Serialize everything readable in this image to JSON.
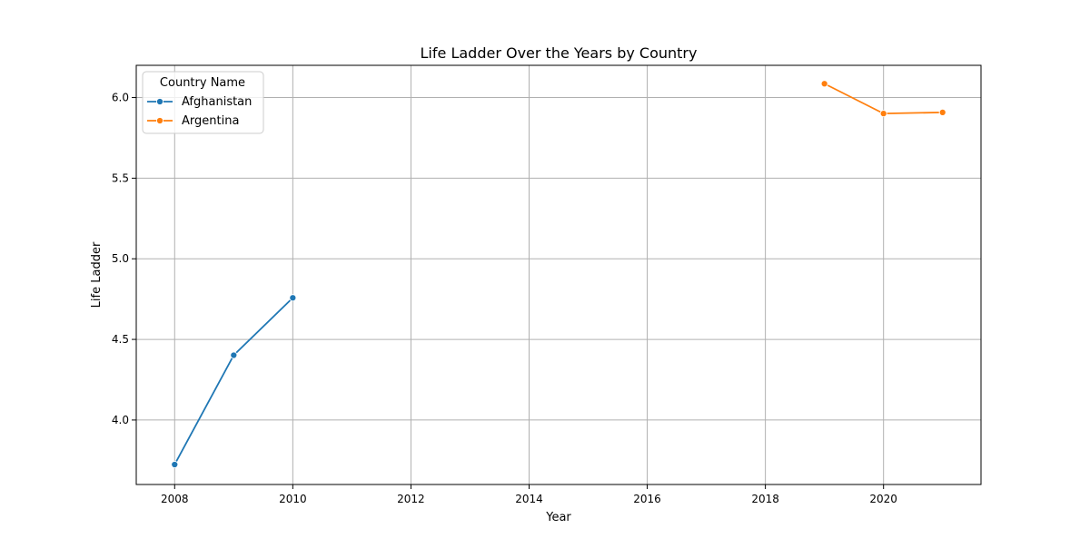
{
  "chart_data": {
    "type": "line",
    "title": "Life Ladder Over the Years by Country",
    "xlabel": "Year",
    "ylabel": "Life Ladder",
    "xlim": [
      2007.35,
      2021.65
    ],
    "ylim": [
      3.6,
      6.2
    ],
    "xticks": [
      2008,
      2010,
      2012,
      2014,
      2016,
      2018,
      2020
    ],
    "yticks": [
      4.0,
      4.5,
      5.0,
      5.5,
      6.0
    ],
    "ytick_labels": [
      "4.0",
      "4.5",
      "5.0",
      "5.5",
      "6.0"
    ],
    "grid": true,
    "legend": {
      "title": "Country Name",
      "placement": "top-left"
    },
    "series": [
      {
        "name": "Afghanistan",
        "color": "#1f77b4",
        "x": [
          2008,
          2009,
          2010
        ],
        "values": [
          3.724,
          4.402,
          4.758
        ]
      },
      {
        "name": "Argentina",
        "color": "#ff7f0e",
        "x": [
          2019,
          2020,
          2021
        ],
        "values": [
          6.086,
          5.901,
          5.908
        ]
      }
    ]
  }
}
